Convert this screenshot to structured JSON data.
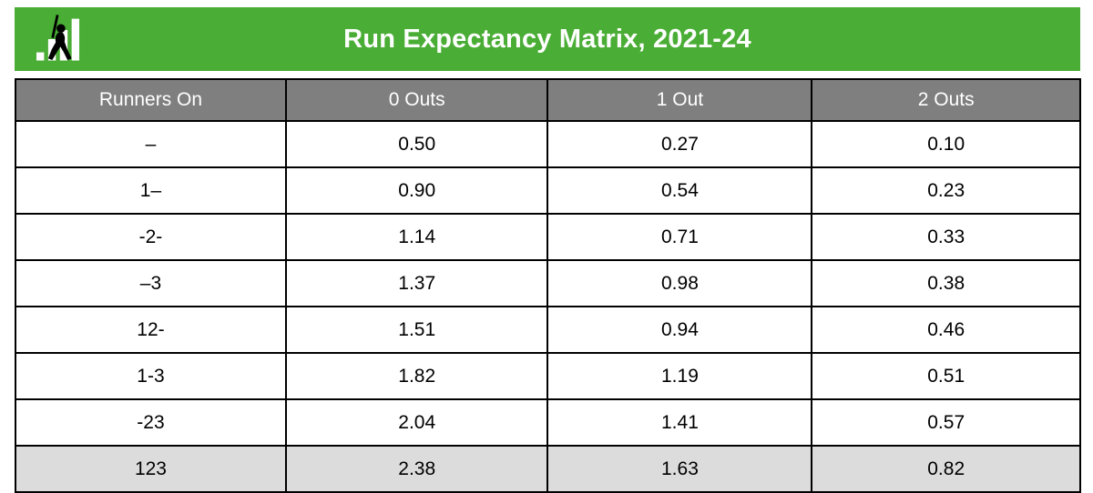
{
  "banner": {
    "title": "Run Expectancy Matrix, 2021-24",
    "bg_color": "#4AAD35",
    "logo": "batter-bar-chart-logo"
  },
  "chart_data": {
    "type": "table",
    "title": "Run Expectancy Matrix, 2021-24",
    "columns": [
      "Runners On",
      "0 Outs",
      "1 Out",
      "2 Outs"
    ],
    "rows": [
      {
        "label": "–",
        "values": [
          "0.50",
          "0.27",
          "0.10"
        ],
        "highlight": false
      },
      {
        "label": "1–",
        "values": [
          "0.90",
          "0.54",
          "0.23"
        ],
        "highlight": false
      },
      {
        "label": "-2-",
        "values": [
          "1.14",
          "0.71",
          "0.33"
        ],
        "highlight": false
      },
      {
        "label": "–3",
        "values": [
          "1.37",
          "0.98",
          "0.38"
        ],
        "highlight": false
      },
      {
        "label": "12-",
        "values": [
          "1.51",
          "0.94",
          "0.46"
        ],
        "highlight": false
      },
      {
        "label": "1-3",
        "values": [
          "1.82",
          "1.19",
          "0.51"
        ],
        "highlight": false
      },
      {
        "label": "-23",
        "values": [
          "2.04",
          "1.41",
          "0.57"
        ],
        "highlight": false
      },
      {
        "label": "123",
        "values": [
          "2.38",
          "1.63",
          "0.82"
        ],
        "highlight": true
      }
    ],
    "colors": {
      "banner_green": "#4AAD35",
      "header_bg": "#7F7F7F",
      "header_text": "#FFFFFF",
      "highlight_row_bg": "#DCDCDC",
      "border": "#000000"
    },
    "layout": {
      "grid": "full-borders",
      "legend": "none"
    }
  }
}
